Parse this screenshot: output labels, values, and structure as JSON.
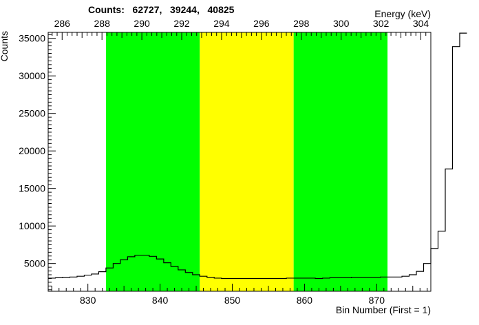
{
  "chart_data": {
    "type": "histogram",
    "title": "",
    "counts_label": "Counts:   62727,   39244,   40825",
    "xlabel": "Bin Number (First = 1)",
    "x2label": "Energy (keV)",
    "ylabel": "Counts",
    "xlim": [
      824.5,
      877.5
    ],
    "ylim": [
      1300,
      35800
    ],
    "x2lim": [
      285.3,
      304.5
    ],
    "x_ticks": [
      830,
      840,
      850,
      860,
      870
    ],
    "x2_ticks": [
      286,
      288,
      290,
      292,
      294,
      296,
      298,
      300,
      302,
      304
    ],
    "y_ticks": [
      5000,
      10000,
      15000,
      20000,
      25000,
      30000,
      35000
    ],
    "grid": false,
    "regions": [
      {
        "from": 832.5,
        "to": 845.5,
        "color": "#00ff00"
      },
      {
        "from": 845.5,
        "to": 858.5,
        "color": "#ffff00"
      },
      {
        "from": 858.5,
        "to": 871.5,
        "color": "#00ff00"
      }
    ],
    "line_color": "#000000",
    "bins": {
      "first_bin_low_edge": 824.5,
      "bin_width": 1,
      "values": [
        3050,
        3100,
        3150,
        3200,
        3300,
        3450,
        3600,
        3900,
        4400,
        5000,
        5500,
        5900,
        6100,
        6100,
        5950,
        5600,
        5100,
        4600,
        4150,
        3800,
        3500,
        3300,
        3150,
        3050,
        3000,
        3000,
        3000,
        3000,
        3000,
        3000,
        3000,
        3000,
        3000,
        3050,
        3050,
        3050,
        3050,
        3000,
        3050,
        3100,
        3100,
        3100,
        3150,
        3150,
        3150,
        3150,
        3200,
        3200,
        3200,
        3300,
        3500,
        3950,
        5000,
        7000,
        9300,
        17600,
        33900,
        35700
      ]
    }
  }
}
